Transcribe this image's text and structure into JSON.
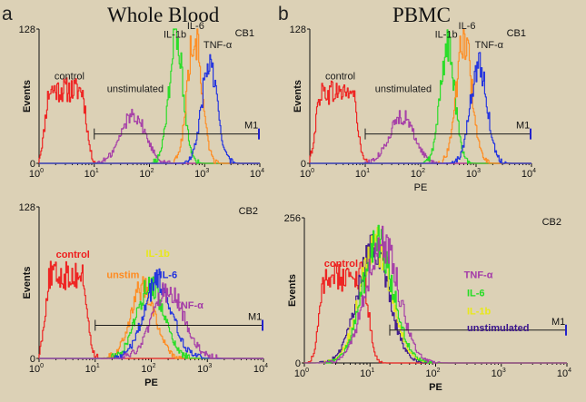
{
  "colors": {
    "control": "#ee1c1c",
    "unstimulated": "#a33aa8",
    "IL-1b": "#22dd22",
    "IL-6": "#ff8a1e",
    "TNF-α": "#1c2ee0",
    "IL-1b_bright": "#e8e81a",
    "unstim_dark": "#3a148c",
    "gate": "#1c1c1c",
    "gate_end": "#2222cc"
  },
  "headers": {
    "a": {
      "letter": "a",
      "title": "Whole Blood"
    },
    "b": {
      "letter": "b",
      "title": "PBMC"
    }
  },
  "chart_data": [
    {
      "type": "area",
      "panel": "a",
      "corner_label": "CB1",
      "ylabel": "Events",
      "xlabel": "",
      "xscale": "log",
      "xlim": [
        1,
        10000
      ],
      "ylim": [
        0,
        128
      ],
      "yticks": [
        "0",
        "128"
      ],
      "xticks": [
        "10^0",
        "10^1",
        "10^2",
        "10^3",
        "10^4"
      ],
      "gate": {
        "label": "M1",
        "from": 10,
        "to": 10000,
        "level": 28
      },
      "series": [
        {
          "name": "control",
          "key": "control",
          "peak": 3,
          "width": 0.3,
          "height": 70,
          "shape": "plateau"
        },
        {
          "name": "unstimulated",
          "key": "unstimulated",
          "peak": 50,
          "width": 0.22,
          "height": 47
        },
        {
          "name": "IL-1b",
          "key": "IL-1b",
          "peak": 300,
          "width": 0.13,
          "height": 118
        },
        {
          "name": "IL-6",
          "key": "IL-6",
          "peak": 650,
          "width": 0.13,
          "height": 122
        },
        {
          "name": "TNF-α",
          "key": "TNF-α",
          "peak": 1200,
          "width": 0.14,
          "height": 95
        }
      ],
      "annotations": [
        {
          "text": "control",
          "key": "annot",
          "bold": false,
          "x": 1.9,
          "y": 80
        },
        {
          "text": "unstimulated",
          "key": "annot",
          "bold": false,
          "x": 17,
          "y": 68
        },
        {
          "text": "IL-1b",
          "key": "annot",
          "bold": false,
          "x": 180,
          "y": 120
        },
        {
          "text": "IL-6",
          "key": "annot",
          "bold": false,
          "x": 480,
          "y": 128
        },
        {
          "text": "TNF-α",
          "key": "annot",
          "bold": false,
          "x": 950,
          "y": 110
        }
      ]
    },
    {
      "type": "area",
      "panel": "b",
      "corner_label": "CB1",
      "ylabel": "Events",
      "xlabel": "PE",
      "xscale": "log",
      "xlim": [
        1,
        10000
      ],
      "ylim": [
        0,
        128
      ],
      "yticks": [
        "0",
        "128"
      ],
      "xticks": [
        "10^0",
        "10^1",
        "10^2",
        "10^3",
        "10^4"
      ],
      "gate": {
        "label": "M1",
        "from": 10,
        "to": 10000,
        "level": 28
      },
      "series": [
        {
          "name": "control",
          "key": "control",
          "peak": 3,
          "width": 0.3,
          "height": 68,
          "shape": "plateau"
        },
        {
          "name": "unstimulated",
          "key": "unstimulated",
          "peak": 45,
          "width": 0.22,
          "height": 45
        },
        {
          "name": "IL-1b",
          "key": "IL-1b",
          "peak": 300,
          "width": 0.13,
          "height": 112
        },
        {
          "name": "IL-6",
          "key": "IL-6",
          "peak": 600,
          "width": 0.14,
          "height": 118
        },
        {
          "name": "TNF-α",
          "key": "TNF-α",
          "peak": 1100,
          "width": 0.15,
          "height": 95
        }
      ],
      "annotations": [
        {
          "text": "control",
          "key": "annot",
          "bold": false,
          "x": 1.9,
          "y": 80
        },
        {
          "text": "unstimulated",
          "key": "annot",
          "bold": false,
          "x": 15,
          "y": 68
        },
        {
          "text": "IL-1b",
          "key": "annot",
          "bold": false,
          "x": 180,
          "y": 120
        },
        {
          "text": "IL-6",
          "key": "annot",
          "bold": false,
          "x": 480,
          "y": 128
        },
        {
          "text": "TNF-α",
          "key": "annot",
          "bold": false,
          "x": 950,
          "y": 110
        }
      ]
    },
    {
      "type": "area",
      "panel": "a",
      "corner_label": "CB2",
      "ylabel": "Events",
      "xlabel": "PE",
      "xscale": "log",
      "xlim": [
        1,
        10000
      ],
      "ylim": [
        0,
        128
      ],
      "yticks": [
        "0",
        "128"
      ],
      "xticks": [
        "10^0",
        "10^1",
        "10^2",
        "10^3",
        "10^4"
      ],
      "gate": {
        "label": "M1",
        "from": 10,
        "to": 10000,
        "level": 28
      },
      "series": [
        {
          "name": "control",
          "key": "control",
          "peak": 3,
          "width": 0.3,
          "height": 70,
          "shape": "plateau"
        },
        {
          "name": "unstim",
          "key": "IL-6",
          "peak": 70,
          "width": 0.22,
          "height": 60
        },
        {
          "name": "IL-1b",
          "key": "IL-1b",
          "peak": 95,
          "width": 0.24,
          "height": 62
        },
        {
          "name": "IL-6",
          "key": "TNF-α",
          "peak": 130,
          "width": 0.25,
          "height": 66
        },
        {
          "name": "TNF-α",
          "key": "unstimulated",
          "peak": 200,
          "width": 0.28,
          "height": 58
        }
      ],
      "annotations": [
        {
          "text": "control",
          "key": "control",
          "bold": true,
          "x": 2.0,
          "y": 85
        },
        {
          "text": "unstim",
          "key": "IL-6",
          "bold": true,
          "x": 16,
          "y": 68
        },
        {
          "text": "IL-1b",
          "key": "IL-1b_bright",
          "bold": true,
          "x": 80,
          "y": 86
        },
        {
          "text": "IL-6",
          "key": "TNF-α",
          "bold": true,
          "x": 140,
          "y": 68
        },
        {
          "text": "TNF-α",
          "key": "unstimulated",
          "bold": true,
          "x": 260,
          "y": 42
        }
      ]
    },
    {
      "type": "area",
      "panel": "b",
      "corner_label": "CB2",
      "ylabel": "Events",
      "xlabel": "PE",
      "xscale": "log",
      "xlim": [
        1,
        10000
      ],
      "ylim": [
        0,
        256
      ],
      "yticks": [
        "0",
        "256"
      ],
      "xticks": [
        "10^0",
        "10^1",
        "10^2",
        "10^3",
        "10^4"
      ],
      "gate": {
        "label": "M1",
        "from": 20,
        "to": 10000,
        "level": 58
      },
      "series": [
        {
          "name": "control",
          "key": "control",
          "peak": 4,
          "width": 0.26,
          "height": 152,
          "shape": "plateau"
        },
        {
          "name": "unstimulated",
          "key": "unstim_dark",
          "peak": 11,
          "width": 0.24,
          "height": 200
        },
        {
          "name": "IL-1b",
          "key": "IL-1b_bright",
          "peak": 12,
          "width": 0.24,
          "height": 205
        },
        {
          "name": "IL-6",
          "key": "IL-1b",
          "peak": 13,
          "width": 0.24,
          "height": 208
        },
        {
          "name": "TNF-α",
          "key": "unstimulated",
          "peak": 15,
          "width": 0.25,
          "height": 215
        }
      ],
      "annotations": [
        {
          "text": "control",
          "key": "control",
          "bold": true,
          "x": 2.0,
          "y": 170
        },
        {
          "text": "TNF-α",
          "key": "unstimulated",
          "bold": true,
          "x": 270,
          "y": 150
        },
        {
          "text": "IL-6",
          "key": "IL-1b",
          "bold": true,
          "x": 300,
          "y": 118
        },
        {
          "text": "IL-1b",
          "key": "IL-1b_bright",
          "bold": true,
          "x": 300,
          "y": 86
        },
        {
          "text": "unstimulated",
          "key": "unstim_dark",
          "bold": true,
          "x": 300,
          "y": 56
        }
      ]
    }
  ]
}
